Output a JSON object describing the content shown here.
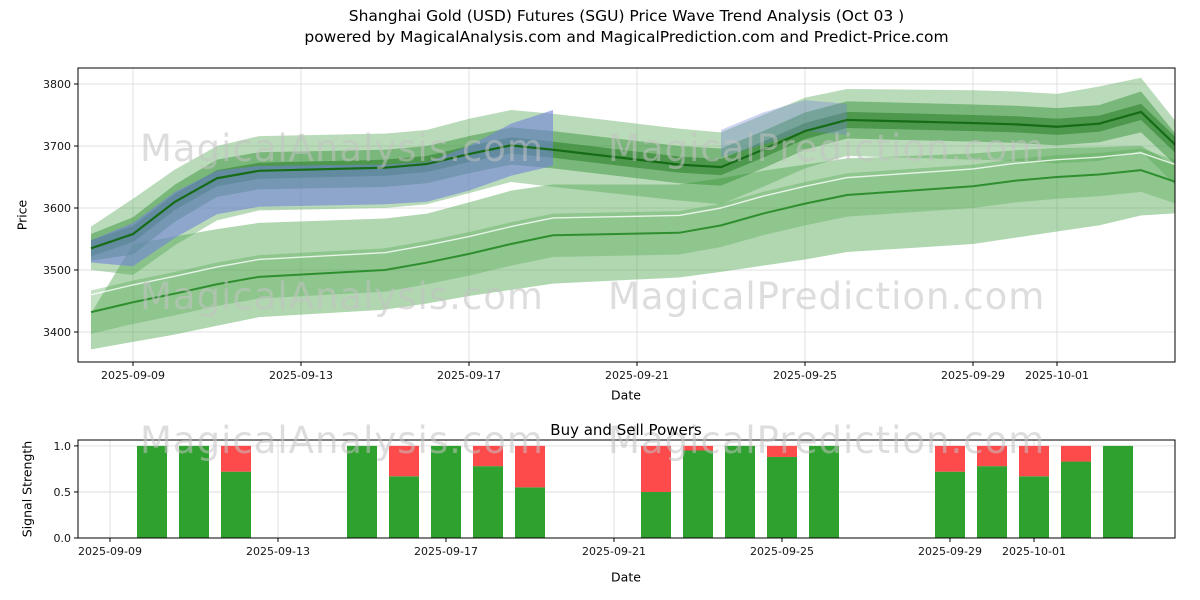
{
  "header": {
    "title_line1": "Shanghai Gold (USD) Futures (SGU) Price Wave Trend Analysis (Oct 03 )",
    "title_line2": "powered by MagicalAnalysis.com and MagicalPrediction.com and Predict-Price.com"
  },
  "watermark": {
    "left": "MagicalAnalysis.com",
    "right": "MagicalPrediction.com"
  },
  "chart_data": [
    {
      "type": "area",
      "title": "",
      "xlabel": "Date",
      "ylabel": "Price",
      "ylim": [
        3352,
        3826
      ],
      "yticks": [
        3400,
        3500,
        3600,
        3700,
        3800
      ],
      "xticks": [
        "2025-09-09",
        "2025-09-13",
        "2025-09-17",
        "2025-09-21",
        "2025-09-25",
        "2025-09-29",
        "2025-10-01"
      ],
      "grid": true,
      "legend": "none",
      "dates": [
        "2025-09-08",
        "2025-09-09",
        "2025-09-10",
        "2025-09-11",
        "2025-09-12",
        "2025-09-15",
        "2025-09-16",
        "2025-09-17",
        "2025-09-18",
        "2025-09-19",
        "2025-09-22",
        "2025-09-23",
        "2025-09-24",
        "2025-09-25",
        "2025-09-26",
        "2025-09-29",
        "2025-09-30",
        "2025-10-01",
        "2025-10-02",
        "2025-10-03",
        "2025-10-04"
      ],
      "bands": [
        {
          "name": "lower-outer",
          "color": "#4fa64f",
          "alpha": 0.45,
          "lower": [
            3372,
            3384,
            3396,
            3410,
            3424,
            3436,
            3446,
            3458,
            3468,
            3478,
            3488,
            3497,
            3507,
            3517,
            3529,
            3542,
            3552,
            3562,
            3572,
            3588,
            3592
          ],
          "upper": [
            3430,
            3542,
            3554,
            3566,
            3576,
            3583,
            3591,
            3609,
            3628,
            3638,
            3638,
            3648,
            3660,
            3670,
            3680,
            3688,
            3693,
            3697,
            3698,
            3700,
            3662
          ]
        },
        {
          "name": "lower-inner",
          "color": "#4fa64f",
          "alpha": 0.35,
          "lower": [
            3397,
            3413,
            3427,
            3442,
            3454,
            3465,
            3477,
            3491,
            3507,
            3521,
            3525,
            3537,
            3556,
            3572,
            3586,
            3600,
            3609,
            3615,
            3619,
            3626,
            3603
          ],
          "upper": [
            3467,
            3483,
            3497,
            3512,
            3524,
            3535,
            3547,
            3561,
            3577,
            3591,
            3595,
            3607,
            3626,
            3642,
            3656,
            3670,
            3679,
            3685,
            3689,
            3696,
            3673
          ]
        },
        {
          "name": "upper-outer",
          "color": "#4fa64f",
          "alpha": 0.4,
          "lower": [
            3500,
            3492,
            3540,
            3580,
            3596,
            3600,
            3606,
            3624,
            3642,
            3634,
            3612,
            3606,
            3634,
            3664,
            3684,
            3678,
            3676,
            3672,
            3676,
            3692,
            3625
          ],
          "upper": [
            3570,
            3615,
            3662,
            3700,
            3716,
            3720,
            3726,
            3744,
            3758,
            3752,
            3728,
            3722,
            3750,
            3778,
            3792,
            3790,
            3788,
            3784,
            3796,
            3810,
            3725
          ]
        },
        {
          "name": "upper-mid",
          "color": "#2e8b2e",
          "alpha": 0.45,
          "lower": [
            3515,
            3525,
            3578,
            3618,
            3630,
            3634,
            3640,
            3656,
            3670,
            3664,
            3640,
            3636,
            3664,
            3694,
            3712,
            3707,
            3705,
            3701,
            3706,
            3722,
            3658
          ],
          "upper": [
            3558,
            3585,
            3638,
            3678,
            3690,
            3694,
            3700,
            3716,
            3730,
            3724,
            3700,
            3696,
            3724,
            3754,
            3772,
            3767,
            3765,
            3761,
            3766,
            3788,
            3705
          ]
        },
        {
          "name": "upper-core",
          "color": "#1f7a1f",
          "alpha": 0.5,
          "lower": [
            3522,
            3545,
            3597,
            3635,
            3647,
            3652,
            3658,
            3674,
            3688,
            3681,
            3657,
            3653,
            3681,
            3711,
            3729,
            3724,
            3722,
            3718,
            3723,
            3742,
            3677
          ],
          "upper": [
            3548,
            3571,
            3623,
            3661,
            3673,
            3678,
            3684,
            3700,
            3714,
            3707,
            3683,
            3679,
            3707,
            3737,
            3755,
            3750,
            3748,
            3744,
            3749,
            3768,
            3703
          ]
        },
        {
          "name": "blue-wave",
          "color": "#7282d8",
          "alpha": 0.6,
          "dates": [
            "2025-09-08",
            "2025-09-09",
            "2025-09-10",
            "2025-09-11",
            "2025-09-12",
            "2025-09-15",
            "2025-09-16",
            "2025-09-17",
            "2025-09-18",
            "2025-09-19"
          ],
          "lower": [
            3512,
            3506,
            3552,
            3590,
            3602,
            3606,
            3610,
            3628,
            3652,
            3668
          ],
          "upper": [
            3548,
            3576,
            3626,
            3660,
            3668,
            3670,
            3674,
            3700,
            3736,
            3758
          ]
        },
        {
          "name": "blue-wave-2",
          "color": "#7282d8",
          "alpha": 0.35,
          "dates": [
            "2025-09-23",
            "2025-09-24",
            "2025-09-25",
            "2025-09-26"
          ],
          "lower": [
            3682,
            3702,
            3724,
            3718
          ],
          "upper": [
            3726,
            3754,
            3774,
            3768
          ]
        }
      ],
      "lines": [
        {
          "name": "upper-trend",
          "color": "#166b16",
          "width": 2.2,
          "alpha": 1,
          "values": [
            3535,
            3558,
            3610,
            3648,
            3660,
            3665,
            3671,
            3687,
            3701,
            3694,
            3670,
            3666,
            3694,
            3724,
            3742,
            3737,
            3735,
            3731,
            3736,
            3755,
            3690
          ]
        },
        {
          "name": "lower-trend",
          "color": "#2f8f2f",
          "width": 2,
          "alpha": 1,
          "values": [
            3432,
            3448,
            3462,
            3477,
            3489,
            3500,
            3512,
            3526,
            3542,
            3556,
            3560,
            3572,
            3591,
            3607,
            3621,
            3635,
            3644,
            3650,
            3654,
            3661,
            3638
          ]
        },
        {
          "name": "lower-highlight",
          "color": "#ffffff",
          "width": 1.4,
          "alpha": 0.8,
          "values": [
            3460,
            3476,
            3490,
            3505,
            3517,
            3528,
            3540,
            3554,
            3570,
            3584,
            3588,
            3600,
            3619,
            3635,
            3649,
            3663,
            3672,
            3678,
            3682,
            3689,
            3666
          ]
        }
      ]
    },
    {
      "type": "bar",
      "title": "Buy and Sell Powers",
      "xlabel": "Date",
      "ylabel": "Signal Strength",
      "ylim": [
        0,
        1.064
      ],
      "yticks": [
        "0.0",
        "0.5",
        "1.0"
      ],
      "xticks": [
        "2025-09-09",
        "2025-09-13",
        "2025-09-17",
        "2025-09-21",
        "2025-09-25",
        "2025-09-29",
        "2025-10-01"
      ],
      "grid": true,
      "buy_color": "#2fa12f",
      "sell_color": "#fd4b4b",
      "bars": [
        {
          "date": "2025-09-10",
          "buy": 1.0,
          "sell": 0.0
        },
        {
          "date": "2025-09-11",
          "buy": 1.0,
          "sell": 0.0
        },
        {
          "date": "2025-09-12",
          "buy": 0.72,
          "sell": 0.28
        },
        {
          "date": "2025-09-15",
          "buy": 1.0,
          "sell": 0.0
        },
        {
          "date": "2025-09-16",
          "buy": 0.67,
          "sell": 0.33
        },
        {
          "date": "2025-09-17",
          "buy": 1.0,
          "sell": 0.0
        },
        {
          "date": "2025-09-18",
          "buy": 0.78,
          "sell": 0.22
        },
        {
          "date": "2025-09-19",
          "buy": 0.55,
          "sell": 0.45
        },
        {
          "date": "2025-09-22",
          "buy": 0.5,
          "sell": 0.5
        },
        {
          "date": "2025-09-23",
          "buy": 0.95,
          "sell": 0.05
        },
        {
          "date": "2025-09-24",
          "buy": 1.0,
          "sell": 0.0
        },
        {
          "date": "2025-09-25",
          "buy": 0.88,
          "sell": 0.12
        },
        {
          "date": "2025-09-26",
          "buy": 1.0,
          "sell": 0.0
        },
        {
          "date": "2025-09-29",
          "buy": 0.72,
          "sell": 0.28
        },
        {
          "date": "2025-09-30",
          "buy": 0.78,
          "sell": 0.22
        },
        {
          "date": "2025-10-01",
          "buy": 0.67,
          "sell": 0.33
        },
        {
          "date": "2025-10-02",
          "buy": 0.83,
          "sell": 0.17
        },
        {
          "date": "2025-10-03",
          "buy": 1.0,
          "sell": 0.0
        }
      ]
    }
  ]
}
